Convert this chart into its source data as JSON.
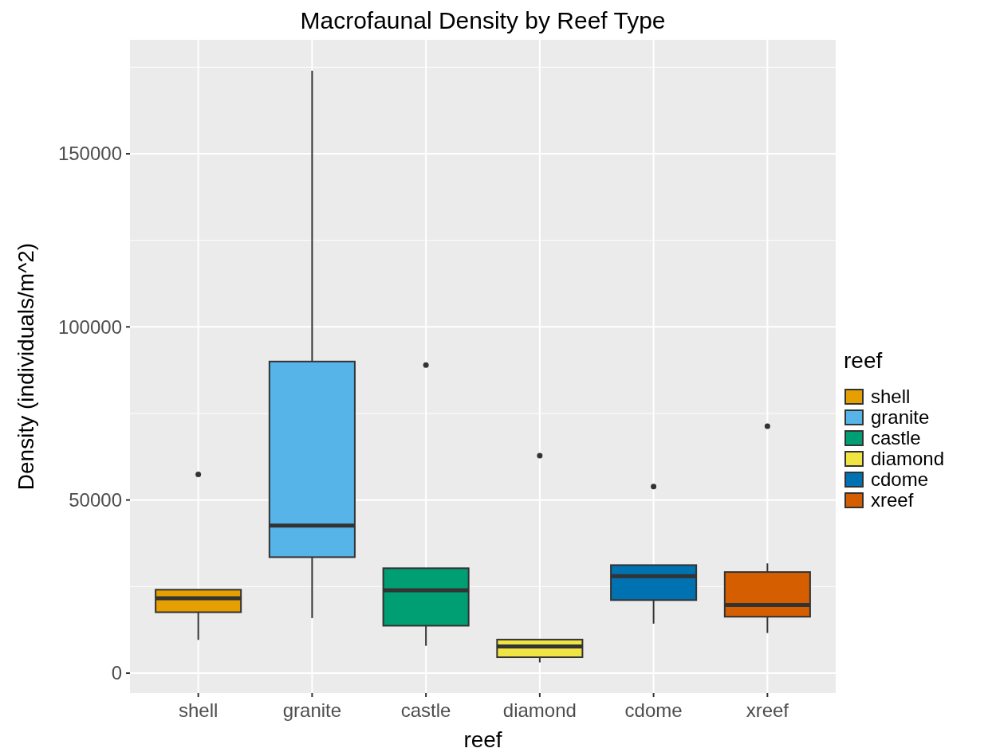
{
  "chart_data": {
    "type": "box",
    "title": "Macrofaunal Density by Reef Type",
    "xlabel": "reef",
    "ylabel": "Density (individuals/m^2)",
    "legend_title": "reef",
    "legend": "right",
    "grid": true,
    "categories": [
      "shell",
      "granite",
      "castle",
      "diamond",
      "cdome",
      "xreef"
    ],
    "series": [
      {
        "name": "shell",
        "color": "#e69f00",
        "boxes": [
          {
            "low": 9600,
            "q1": 17600,
            "median": 21600,
            "q3": 24100,
            "high": 24100,
            "outliers": [
              57400
            ]
          },
          null,
          null,
          null,
          null,
          null
        ]
      },
      {
        "name": "granite",
        "color": "#56b4e9",
        "boxes": [
          null,
          {
            "low": 15900,
            "q1": 33500,
            "median": 42600,
            "q3": 90000,
            "high": 174000
          },
          null,
          null,
          null,
          null
        ]
      },
      {
        "name": "castle",
        "color": "#009e73",
        "boxes": [
          null,
          null,
          {
            "low": 7900,
            "q1": 13700,
            "median": 23900,
            "q3": 30300,
            "high": 30300,
            "outliers": [
              89000
            ]
          },
          null,
          null,
          null
        ]
      },
      {
        "name": "diamond",
        "color": "#f0e442",
        "boxes": [
          null,
          null,
          null,
          {
            "low": 3100,
            "q1": 4600,
            "median": 7700,
            "q3": 9700,
            "high": 9700,
            "outliers": [
              62800
            ]
          },
          null,
          null
        ]
      },
      {
        "name": "cdome",
        "color": "#0072b2",
        "boxes": [
          null,
          null,
          null,
          null,
          {
            "low": 14300,
            "q1": 21100,
            "median": 28000,
            "q3": 31200,
            "high": 31200,
            "outliers": [
              53900
            ]
          },
          null
        ]
      },
      {
        "name": "xreef",
        "color": "#d55e00",
        "boxes": [
          null,
          null,
          null,
          null,
          null,
          {
            "low": 11600,
            "q1": 16300,
            "median": 19700,
            "q3": 29200,
            "high": 31700,
            "outliers": [
              71300
            ]
          }
        ]
      }
    ],
    "ylim": [
      -5750,
      182900
    ],
    "yticks": [
      0,
      50000,
      100000,
      150000
    ]
  }
}
